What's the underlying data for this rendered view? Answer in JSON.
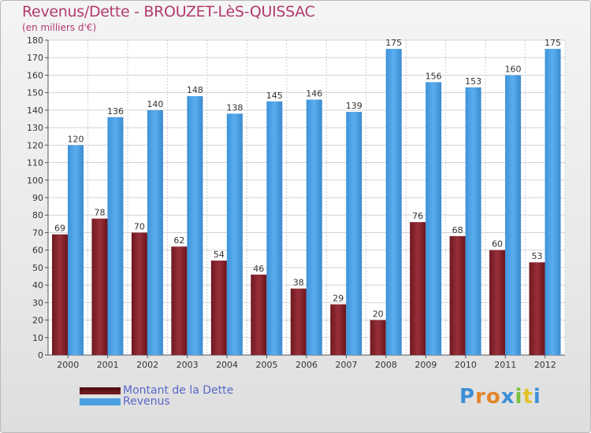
{
  "header": {
    "title": "Revenus/Dette - BROUZET-LèS-QUISSAC",
    "subtitle": "(en milliers d'€)"
  },
  "colors": {
    "dette": "#7a1c24",
    "revenus": "#4a9fe3",
    "title": "#b23a6d",
    "legend_text": "#5a67c9"
  },
  "chart_data": {
    "type": "bar",
    "categories": [
      "2000",
      "2001",
      "2002",
      "2003",
      "2004",
      "2005",
      "2006",
      "2007",
      "2008",
      "2009",
      "2010",
      "2011",
      "2012"
    ],
    "series": [
      {
        "name": "Montant de la Dette",
        "values": [
          69,
          78,
          70,
          62,
          54,
          46,
          38,
          29,
          20,
          76,
          68,
          60,
          53
        ]
      },
      {
        "name": "Revenus",
        "values": [
          120,
          136,
          140,
          148,
          138,
          145,
          146,
          139,
          175,
          156,
          153,
          160,
          175
        ]
      }
    ],
    "ylim": [
      0,
      180
    ],
    "ytick_step": 10,
    "grid": true,
    "legend_position": "bottom-left"
  },
  "logo": {
    "letters": [
      "P",
      "r",
      "o",
      "x",
      "i",
      "t",
      "i"
    ],
    "colors": [
      "#3d8fd6",
      "#e2842a",
      "#e2842a",
      "#3d8fd6",
      "#7cbf3a",
      "#e2c22a",
      "#3d8fd6"
    ]
  }
}
